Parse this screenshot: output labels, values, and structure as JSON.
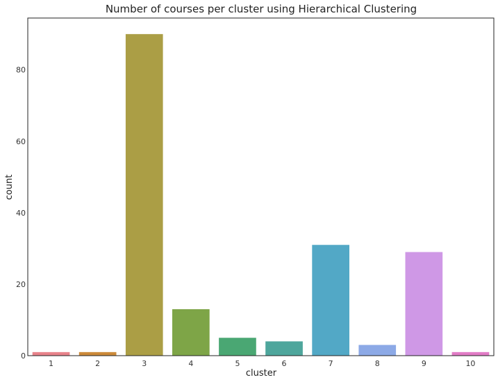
{
  "chart_data": {
    "type": "bar",
    "title": "Number of courses per cluster using Hierarchical Clustering",
    "xlabel": "cluster",
    "ylabel": "count",
    "categories": [
      "1",
      "2",
      "3",
      "4",
      "5",
      "6",
      "7",
      "8",
      "9",
      "10"
    ],
    "values": [
      1,
      1,
      90,
      13,
      5,
      4,
      31,
      3,
      29,
      1
    ],
    "colors": [
      "#e8838b",
      "#cc8a3a",
      "#ab9e45",
      "#7ea547",
      "#4aa773",
      "#4ea69c",
      "#52a8c6",
      "#8ca9e6",
      "#cf98e6",
      "#e27cc6"
    ],
    "yticks": [
      0,
      20,
      40,
      60,
      80
    ],
    "ylim": [
      0,
      94.5
    ],
    "grid": false,
    "legend": "none"
  }
}
